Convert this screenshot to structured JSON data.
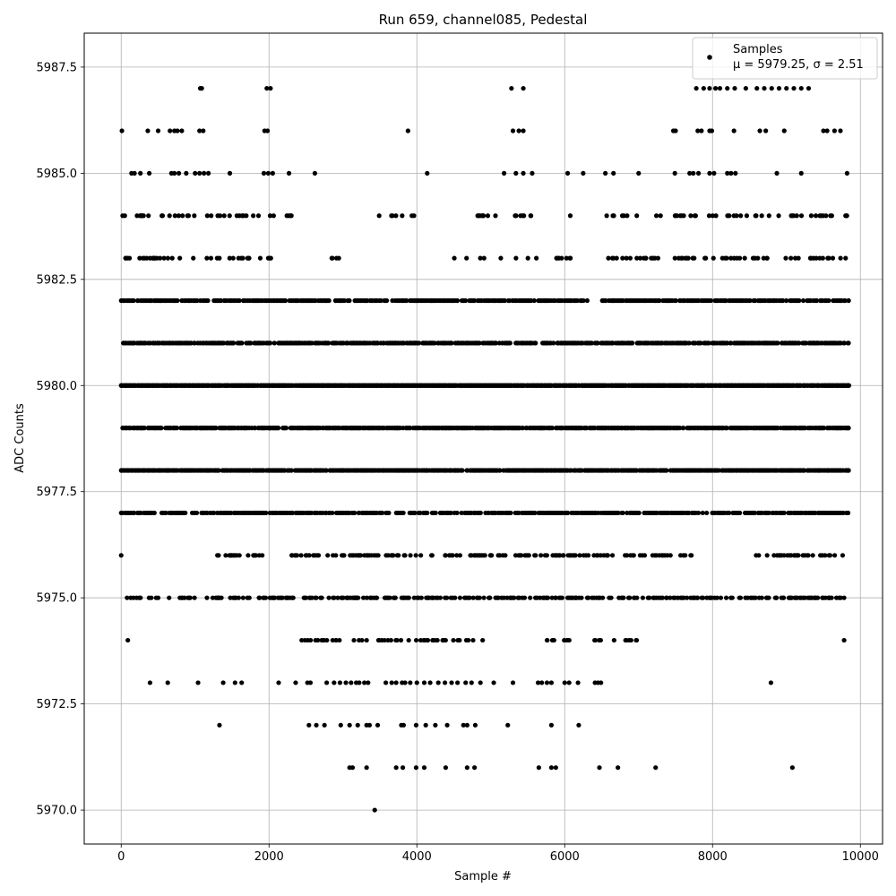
{
  "chart_data": {
    "type": "scatter",
    "title": "Run 659, channel085, Pedestal",
    "xlabel": "Sample #",
    "ylabel": "ADC Counts",
    "xlim": [
      -500,
      10300
    ],
    "ylim": [
      5969.2,
      5988.3
    ],
    "x_ticks": [
      0,
      2000,
      4000,
      6000,
      8000,
      10000
    ],
    "x_tick_labels": [
      "0",
      "2000",
      "4000",
      "6000",
      "8000",
      "10000"
    ],
    "y_ticks": [
      5970.0,
      5972.5,
      5975.0,
      5977.5,
      5980.0,
      5982.5,
      5985.0,
      5987.5
    ],
    "y_tick_labels": [
      "5970.0",
      "5972.5",
      "5975.0",
      "5977.5",
      "5980.0",
      "5982.5",
      "5985.0",
      "5987.5"
    ],
    "grid": true,
    "legend_position": "top-right",
    "series": [
      {
        "name": "Samples",
        "legend_stats": "μ = 5979.25, σ = 2.51",
        "color": "#000000",
        "marker": "circle",
        "n_samples": 9840,
        "x_range": [
          0,
          9839
        ],
        "mean": 5979.25,
        "std": 2.51,
        "value_levels": [
          {
            "y": 5987,
            "x": [
              1070,
              1090,
              1970,
              2020,
              5280,
              5440,
              7780,
              7880,
              7960,
              8040,
              8100,
              8200,
              8300,
              8450,
              8600,
              8700,
              8800,
              8900,
              9000,
              9100,
              9200,
              9300
            ]
          },
          {
            "y": 5986,
            "x": [
              10,
              360,
              500,
              660,
              720,
              760,
              820,
              1060,
              1110,
              1940,
              1980,
              3880,
              5300,
              5380,
              5440,
              7470,
              7500,
              7800,
              7850,
              7960,
              7990,
              8290,
              8640,
              8720,
              8970,
              9500,
              9550,
              9650,
              9730
            ]
          },
          {
            "y": 5985,
            "x": [
              140,
              180,
              260,
              380,
              680,
              720,
              780,
              880,
              1000,
              1060,
              1120,
              1180,
              1470,
              1930,
              1990,
              2050,
              2270,
              2620,
              4140,
              5180,
              5340,
              5440,
              5560,
              6040,
              6250,
              6550,
              6660,
              7000,
              7490,
              7690,
              7740,
              7810,
              7960,
              8020,
              8200,
              8250,
              8310,
              8870,
              9200,
              9820
            ]
          },
          {
            "y": 5984,
            "x": [
              20,
              4900,
              8290,
              9800
            ],
            "dense": [
              [
                20,
                2310
              ],
              [
                2980,
                3040
              ],
              [
                3400,
                3960
              ],
              [
                4760,
                5130
              ],
              [
                5230,
                5550
              ],
              [
                5900,
                6080
              ],
              [
                6550,
                7360
              ],
              [
                7450,
                9840
              ]
            ],
            "density": 0.16
          },
          {
            "y": 5983,
            "x": [
              60,
              9800
            ],
            "dense": [
              [
                60,
                2310
              ],
              [
                2780,
                3000
              ],
              [
                3480,
                3530
              ],
              [
                4480,
                5640
              ],
              [
                5820,
                6100
              ],
              [
                6570,
                7280
              ],
              [
                7490,
                9840
              ]
            ],
            "density": 0.17
          },
          {
            "y": 5982,
            "x": [
              0,
              9840
            ],
            "dense": [
              [
                0,
                6300
              ],
              [
                6500,
                9840
              ]
            ],
            "density": 0.6
          },
          {
            "y": 5981,
            "x": [
              30,
              9840
            ],
            "dense": [
              [
                30,
                2100
              ],
              [
                2100,
                3700
              ],
              [
                3700,
                5600
              ],
              [
                5700,
                9840
              ]
            ],
            "density": 0.65
          },
          {
            "y": 5980,
            "x": [
              0,
              9840
            ],
            "dense": [
              [
                0,
                9840
              ]
            ],
            "density": 0.95
          },
          {
            "y": 5979,
            "x": [
              20,
              9840
            ],
            "dense": [
              [
                20,
                2000
              ],
              [
                2000,
                9840
              ]
            ],
            "density": 0.75
          },
          {
            "y": 5978,
            "x": [
              0,
              9840
            ],
            "dense": [
              [
                0,
                9840
              ]
            ],
            "density": 0.8
          },
          {
            "y": 5977,
            "x": [
              0,
              9830
            ],
            "dense": [
              [
                0,
                9830
              ]
            ],
            "density": 0.55
          },
          {
            "y": 5976,
            "x": [
              0,
              9760
            ],
            "dense": [
              [
                1280,
                1940
              ],
              [
                2130,
                7720
              ],
              [
                8570,
                9760
              ]
            ],
            "density": 0.3
          },
          {
            "y": 5975,
            "x": [
              80,
              9780
            ],
            "dense": [
              [
                80,
                9780
              ]
            ],
            "density": 0.3
          },
          {
            "y": 5974,
            "x": [
              90,
              9780
            ],
            "dense": [
              [
                2440,
                5000
              ],
              [
                5500,
                6500
              ],
              [
                6600,
                7000
              ]
            ],
            "density": 0.22
          },
          {
            "y": 5973,
            "x": [
              390,
              630,
              1040,
              1380,
              1540,
              1630,
              2130,
              2360,
              2520,
              2560,
              2780,
              2880,
              2960,
              3040,
              3110,
              3180,
              3220,
              3290,
              3340,
              3580,
              3660,
              3720,
              3800,
              3840,
              3910,
              4000,
              4100,
              4180,
              4290,
              4380,
              4470,
              4550,
              4660,
              4740,
              4860,
              5040,
              5300,
              5640,
              5690,
              5760,
              5820,
              6000,
              6060,
              6180,
              6410,
              6450,
              6490,
              8790
            ]
          },
          {
            "y": 5972,
            "x": [
              1330,
              2540,
              2640,
              2750,
              2970,
              3090,
              3200,
              3320,
              3360,
              3470,
              3790,
              3820,
              3990,
              4120,
              4250,
              4410,
              4630,
              4680,
              4790,
              5230,
              5820,
              6190
            ]
          },
          {
            "y": 5971,
            "x": [
              3090,
              3130,
              3320,
              3720,
              3810,
              3990,
              4100,
              4390,
              4680,
              4780,
              5650,
              5820,
              5880,
              6470,
              6720,
              7230,
              9080
            ]
          },
          {
            "y": 5970,
            "x": [
              3430
            ]
          }
        ]
      }
    ]
  }
}
